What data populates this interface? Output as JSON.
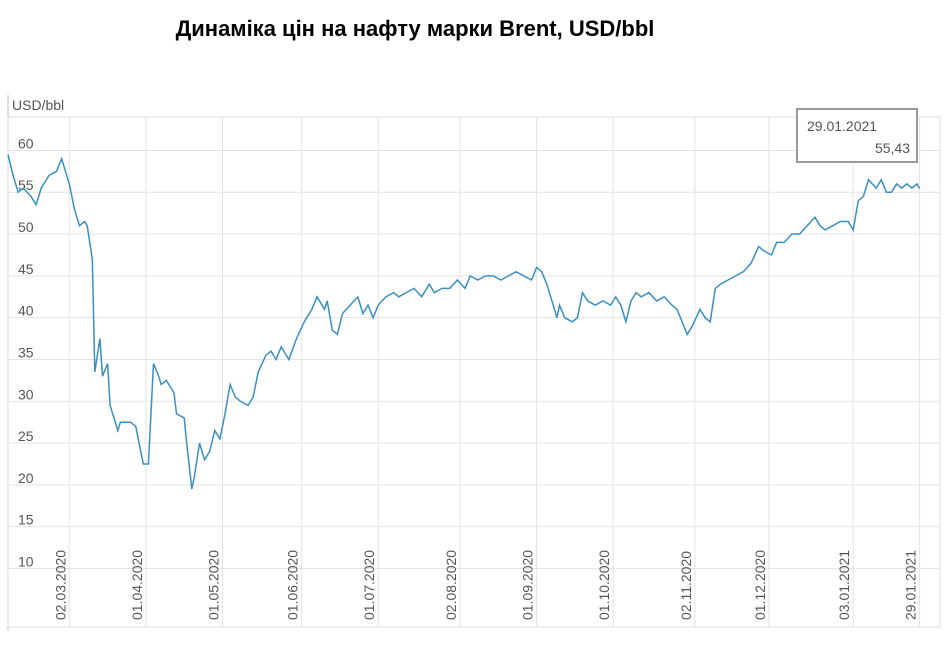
{
  "chart_data": {
    "type": "line",
    "title": "Динаміка цін на нафту марки Brent, USD/bbl",
    "y_label": "USD/bbl",
    "color": "#3a8fc1",
    "grid": true,
    "ylim": [
      3,
      64
    ],
    "yticks": [
      10,
      15,
      20,
      25,
      30,
      35,
      40,
      45,
      50,
      55,
      60
    ],
    "xlim": [
      "07.02.2020",
      "06.02.2021"
    ],
    "xticks": [
      "02.03.2020",
      "01.04.2020",
      "01.05.2020",
      "01.06.2020",
      "01.07.2020",
      "02.08.2020",
      "01.09.2020",
      "01.10.2020",
      "02.11.2020",
      "01.12.2020",
      "03.01.2021",
      "29.01.2021"
    ],
    "annotation": {
      "date": "29.01.2021",
      "value_label": "55,43"
    },
    "x": [
      "07.02.2020",
      "09.02.2020",
      "11.02.2020",
      "13.02.2020",
      "16.02.2020",
      "18.02.2020",
      "20.02.2020",
      "23.02.2020",
      "26.02.2020",
      "28.02.2020",
      "29.02.2020",
      "02.03.2020",
      "04.03.2020",
      "06.03.2020",
      "08.03.2020",
      "09.03.2020",
      "11.03.2020",
      "12.03.2020",
      "14.03.2020",
      "15.03.2020",
      "17.03.2020",
      "18.03.2020",
      "21.03.2020",
      "22.03.2020",
      "26.03.2020",
      "28.03.2020",
      "31.03.2020",
      "02.04.2020",
      "04.04.2020",
      "06.04.2020",
      "07.04.2020",
      "09.04.2020",
      "12.04.2020",
      "13.04.2020",
      "16.04.2020",
      "17.04.2020",
      "19.04.2020",
      "20.04.2020",
      "22.04.2020",
      "24.04.2020",
      "26.04.2020",
      "28.04.2020",
      "30.04.2020",
      "02.05.2020",
      "04.05.2020",
      "06.05.2020",
      "08.05.2020",
      "11.05.2020",
      "13.05.2020",
      "15.05.2020",
      "18.05.2020",
      "20.05.2020",
      "22.05.2020",
      "24.05.2020",
      "27.05.2020",
      "30.05.2020",
      "02.06.2020",
      "05.06.2020",
      "07.06.2020",
      "10.06.2020",
      "11.06.2020",
      "13.06.2020",
      "15.06.2020",
      "17.06.2020",
      "20.06.2020",
      "23.06.2020",
      "25.06.2020",
      "27.06.2020",
      "29.06.2020",
      "01.07.2020",
      "04.07.2020",
      "07.07.2020",
      "09.07.2020",
      "12.07.2020",
      "15.07.2020",
      "18.07.2020",
      "21.07.2020",
      "23.07.2020",
      "26.07.2020",
      "29.07.2020",
      "01.08.2020",
      "04.08.2020",
      "06.08.2020",
      "09.08.2020",
      "12.08.2020",
      "15.08.2020",
      "18.08.2020",
      "21.08.2020",
      "24.08.2020",
      "27.08.2020",
      "30.08.2020",
      "01.09.2020",
      "03.09.2020",
      "05.09.2020",
      "07.09.2020",
      "09.09.2020",
      "10.09.2020",
      "12.09.2020",
      "15.09.2020",
      "17.09.2020",
      "19.09.2020",
      "21.09.2020",
      "24.09.2020",
      "27.09.2020",
      "30.09.2020",
      "02.10.2020",
      "04.10.2020",
      "06.10.2020",
      "08.10.2020",
      "10.10.2020",
      "12.10.2020",
      "15.10.2020",
      "18.10.2020",
      "21.10.2020",
      "24.10.2020",
      "26.10.2020",
      "28.10.2020",
      "30.10.2020",
      "01.11.2020",
      "04.11.2020",
      "06.11.2020",
      "08.11.2020",
      "10.11.2020",
      "12.11.2020",
      "15.11.2020",
      "18.11.2020",
      "21.11.2020",
      "24.11.2020",
      "27.11.2020",
      "29.11.2020",
      "02.12.2020",
      "04.12.2020",
      "07.12.2020",
      "10.12.2020",
      "13.12.2020",
      "16.12.2020",
      "19.12.2020",
      "21.12.2020",
      "23.12.2020",
      "26.12.2020",
      "29.12.2020",
      "01.01.2021",
      "03.01.2021",
      "05.01.2021",
      "07.01.2021",
      "09.01.2021",
      "12.01.2021",
      "14.01.2021",
      "16.01.2021",
      "18.01.2021",
      "20.01.2021",
      "22.01.2021",
      "24.01.2021",
      "26.01.2021",
      "28.01.2021",
      "29.01.2021"
    ],
    "values": [
      59.5,
      57,
      55,
      55.5,
      54.5,
      53.5,
      55.5,
      57,
      57.5,
      59,
      58,
      56,
      53,
      51,
      51.5,
      51,
      47,
      33.5,
      37.5,
      33,
      34.5,
      29.5,
      26.5,
      27.5,
      27.5,
      27,
      22.5,
      22.5,
      34.5,
      33,
      32,
      32.5,
      31,
      28.5,
      28,
      25,
      19.5,
      21,
      25,
      23,
      24,
      26.5,
      25.5,
      28.5,
      32,
      30.5,
      30,
      29.5,
      30.5,
      33.5,
      35.5,
      36,
      35,
      36.5,
      35,
      37.5,
      39.5,
      41,
      42.5,
      41,
      42,
      38.5,
      38,
      40.5,
      41.5,
      42.5,
      40.5,
      41.5,
      40,
      41.5,
      42.5,
      43,
      42.5,
      43,
      43.5,
      42.5,
      44,
      43,
      43.5,
      43.5,
      44.5,
      43.5,
      45,
      44.5,
      45,
      45,
      44.5,
      45,
      45.5,
      45,
      44.5,
      46,
      45.5,
      44,
      42,
      40,
      41.5,
      40,
      39.5,
      40,
      43,
      42,
      41.5,
      42,
      41.5,
      42.5,
      41.5,
      39.5,
      42,
      43,
      42.5,
      43,
      42,
      42.5,
      41.5,
      41,
      39.5,
      38,
      39,
      41,
      40,
      39.5,
      43.5,
      44,
      44.5,
      45,
      45.5,
      46.5,
      48.5,
      48,
      47.5,
      49,
      49,
      50,
      50,
      51,
      52,
      51,
      50.5,
      51,
      51.5,
      51.5,
      50.5,
      54,
      54.5,
      56.5,
      55.5,
      56.5,
      55,
      55,
      56,
      55.5,
      56,
      55.5,
      56,
      55.43
    ]
  }
}
